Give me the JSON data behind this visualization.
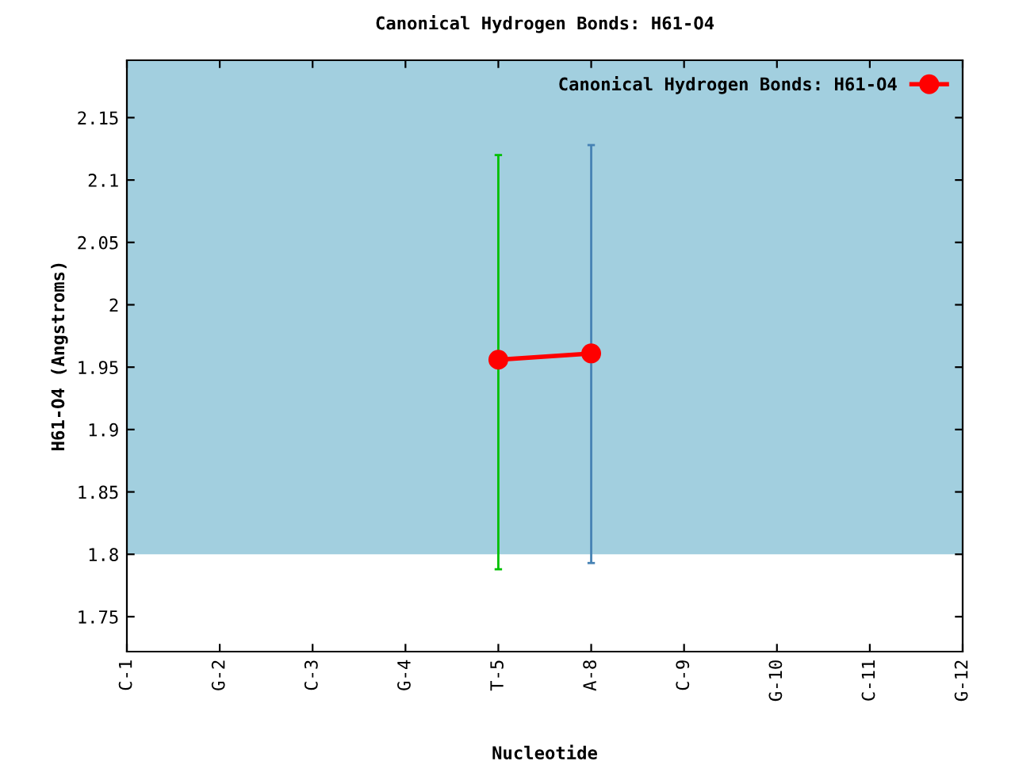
{
  "chart_data": {
    "type": "line",
    "title": "Canonical Hydrogen Bonds: H61-O4",
    "xlabel": "Nucleotide",
    "ylabel": "H61-O4 (Angstroms)",
    "categories": [
      "C-1",
      "G-2",
      "C-3",
      "G-4",
      "T-5",
      "A-8",
      "C-9",
      "G-10",
      "C-11",
      "G-12"
    ],
    "series": [
      {
        "name": "Canonical Hydrogen Bonds: H61-O4",
        "color": "#ff0000",
        "values": [
          null,
          null,
          null,
          null,
          1.956,
          1.961,
          null,
          null,
          null,
          null
        ],
        "errors": [
          null,
          null,
          null,
          null,
          [
            1.788,
            2.12
          ],
          [
            1.793,
            2.128
          ],
          null,
          null,
          null,
          null
        ]
      }
    ],
    "ylim": [
      1.722,
      2.196
    ],
    "yticks": [
      1.75,
      1.8,
      1.85,
      1.9,
      1.95,
      2,
      2.05,
      2.1,
      2.15
    ],
    "bands": [
      {
        "axis": "y",
        "from": 1.8,
        "to": 2.196,
        "color": "#a2cfdf"
      }
    ],
    "marker": "circle",
    "line_style": "solid",
    "legend": "top right",
    "grid": false
  }
}
